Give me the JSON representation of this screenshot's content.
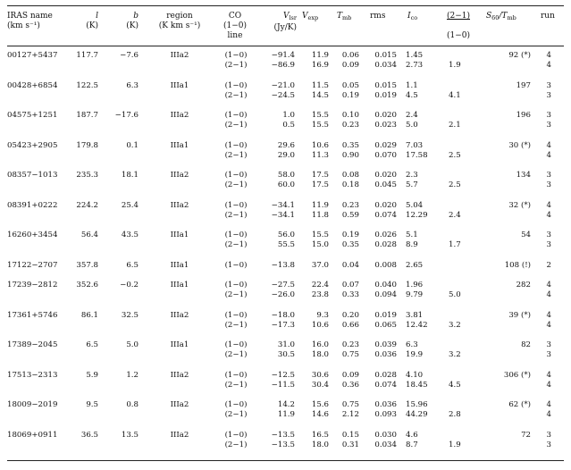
{
  "headers": {
    "name": "IRAS name",
    "name_unit": "(km s⁻¹)",
    "l": "l",
    "l_unit": "(K)",
    "b": "b",
    "b_unit": "(K)",
    "region": "region",
    "region_unit": "(K km s⁻¹)",
    "co": "CO",
    "co_unit": "(1−0)",
    "co_unit2": "line",
    "vlsr": "V",
    "vlsr_sub": "lsr",
    "vlsr_unit": "(Jy/K)",
    "vexp": "V",
    "vexp_sub": "exp",
    "tmb": "T",
    "tmb_sub": "mb",
    "rms": "rms",
    "ico": "I",
    "ico_sub": "co",
    "ratio_top": "(2−1)",
    "ratio_bottom": "(1−0)",
    "s60": "S",
    "s60_sub": "60",
    "s60_tail": "/T",
    "s60_tail_sub": "mb",
    "run": "run"
  },
  "rows": [
    {
      "name": "00127+5437",
      "l": "117.7",
      "b": "−7.6",
      "region": "IIIa2",
      "s60": "92 (*)",
      "lines": [
        {
          "co": "(1−0)",
          "vlsr": "−91.4",
          "vexp": "11.9",
          "tmb": "0.06",
          "rms": "0.015",
          "ico": "1.45",
          "ratio": "",
          "run": "4"
        },
        {
          "co": "(2−1)",
          "vlsr": "−86.9",
          "vexp": "16.9",
          "tmb": "0.09",
          "rms": "0.034",
          "ico": "2.73",
          "ratio": "1.9",
          "run": "4"
        }
      ]
    },
    {
      "name": "00428+6854",
      "l": "122.5",
      "b": "6.3",
      "region": "IIIa1",
      "s60": "197",
      "lines": [
        {
          "co": "(1−0)",
          "vlsr": "−21.0",
          "vexp": "11.5",
          "tmb": "0.05",
          "rms": "0.015",
          "ico": "1.1",
          "ratio": "",
          "run": "3"
        },
        {
          "co": "(2−1)",
          "vlsr": "−24.5",
          "vexp": "14.5",
          "tmb": "0.19",
          "rms": "0.019",
          "ico": "4.5",
          "ratio": "4.1",
          "run": "3"
        }
      ]
    },
    {
      "name": "04575+1251",
      "l": "187.7",
      "b": "−17.6",
      "region": "IIIa2",
      "s60": "196",
      "lines": [
        {
          "co": "(1−0)",
          "vlsr": "1.0",
          "vexp": "15.5",
          "tmb": "0.10",
          "rms": "0.020",
          "ico": "2.4",
          "ratio": "",
          "run": "3"
        },
        {
          "co": "(2−1)",
          "vlsr": "0.5",
          "vexp": "15.5",
          "tmb": "0.23",
          "rms": "0.023",
          "ico": "5.0",
          "ratio": "2.1",
          "run": "3"
        }
      ]
    },
    {
      "name": "05423+2905",
      "l": "179.8",
      "b": "0.1",
      "region": "IIIa1",
      "s60": "30 (*)",
      "lines": [
        {
          "co": "(1−0)",
          "vlsr": "29.6",
          "vexp": "10.6",
          "tmb": "0.35",
          "rms": "0.029",
          "ico": "7.03",
          "ratio": "",
          "run": "4"
        },
        {
          "co": "(2−1)",
          "vlsr": "29.0",
          "vexp": "11.3",
          "tmb": "0.90",
          "rms": "0.070",
          "ico": "17.58",
          "ratio": "2.5",
          "run": "4"
        }
      ]
    },
    {
      "name": "08357−1013",
      "l": "235.3",
      "b": "18.1",
      "region": "IIIa2",
      "s60": "134",
      "lines": [
        {
          "co": "(1−0)",
          "vlsr": "58.0",
          "vexp": "17.5",
          "tmb": "0.08",
          "rms": "0.020",
          "ico": "2.3",
          "ratio": "",
          "run": "3"
        },
        {
          "co": "(2−1)",
          "vlsr": "60.0",
          "vexp": "17.5",
          "tmb": "0.18",
          "rms": "0.045",
          "ico": "5.7",
          "ratio": "2.5",
          "run": "3"
        }
      ]
    },
    {
      "name": "08391+0222",
      "l": "224.2",
      "b": "25.4",
      "region": "IIIa2",
      "s60": "32 (*)",
      "lines": [
        {
          "co": "(1−0)",
          "vlsr": "−34.1",
          "vexp": "11.9",
          "tmb": "0.23",
          "rms": "0.020",
          "ico": "5.04",
          "ratio": "",
          "run": "4"
        },
        {
          "co": "(2−1)",
          "vlsr": "−34.1",
          "vexp": "11.8",
          "tmb": "0.59",
          "rms": "0.074",
          "ico": "12.29",
          "ratio": "2.4",
          "run": "4"
        }
      ]
    },
    {
      "name": "16260+3454",
      "l": "56.4",
      "b": "43.5",
      "region": "IIIa1",
      "s60": "54",
      "lines": [
        {
          "co": "(1−0)",
          "vlsr": "56.0",
          "vexp": "15.5",
          "tmb": "0.19",
          "rms": "0.026",
          "ico": "5.1",
          "ratio": "",
          "run": "3"
        },
        {
          "co": "(2−1)",
          "vlsr": "55.5",
          "vexp": "15.0",
          "tmb": "0.35",
          "rms": "0.028",
          "ico": "8.9",
          "ratio": "1.7",
          "run": "3"
        }
      ]
    },
    {
      "name": "17122−2707",
      "l": "357.8",
      "b": "6.5",
      "region": "IIIa1",
      "s60": "108 (!)",
      "lines": [
        {
          "co": "(1−0)",
          "vlsr": "−13.8",
          "vexp": "37.0",
          "tmb": "0.04",
          "rms": "0.008",
          "ico": "2.65",
          "ratio": "",
          "run": "2"
        }
      ]
    },
    {
      "name": "17239−2812",
      "l": "352.6",
      "b": "−0.2",
      "region": "IIIa1",
      "s60": "282",
      "lines": [
        {
          "co": "(1−0)",
          "vlsr": "−27.5",
          "vexp": "22.4",
          "tmb": "0.07",
          "rms": "0.040",
          "ico": "1.96",
          "ratio": "",
          "run": "4"
        },
        {
          "co": "(2−1)",
          "vlsr": "−26.0",
          "vexp": "23.8",
          "tmb": "0.33",
          "rms": "0.094",
          "ico": "9.79",
          "ratio": "5.0",
          "run": "4"
        }
      ]
    },
    {
      "name": "17361+5746",
      "l": "86.1",
      "b": "32.5",
      "region": "IIIa2",
      "s60": "39 (*)",
      "lines": [
        {
          "co": "(1−0)",
          "vlsr": "−18.0",
          "vexp": "9.3",
          "tmb": "0.20",
          "rms": "0.019",
          "ico": "3.81",
          "ratio": "",
          "run": "4"
        },
        {
          "co": "(2−1)",
          "vlsr": "−17.3",
          "vexp": "10.6",
          "tmb": "0.66",
          "rms": "0.065",
          "ico": "12.42",
          "ratio": "3.2",
          "run": "4"
        }
      ]
    },
    {
      "name": "17389−2045",
      "l": "6.5",
      "b": "5.0",
      "region": "IIIa1",
      "s60": "82",
      "lines": [
        {
          "co": "(1−0)",
          "vlsr": "31.0",
          "vexp": "16.0",
          "tmb": "0.23",
          "rms": "0.039",
          "ico": "6.3",
          "ratio": "",
          "run": "3"
        },
        {
          "co": "(2−1)",
          "vlsr": "30.5",
          "vexp": "18.0",
          "tmb": "0.75",
          "rms": "0.036",
          "ico": "19.9",
          "ratio": "3.2",
          "run": "3"
        }
      ]
    },
    {
      "name": "17513−2313",
      "l": "5.9",
      "b": "1.2",
      "region": "IIIa2",
      "s60": "306 (*)",
      "lines": [
        {
          "co": "(1−0)",
          "vlsr": "−12.5",
          "vexp": "30.6",
          "tmb": "0.09",
          "rms": "0.028",
          "ico": "4.10",
          "ratio": "",
          "run": "4"
        },
        {
          "co": "(2−1)",
          "vlsr": "−11.5",
          "vexp": "30.4",
          "tmb": "0.36",
          "rms": "0.074",
          "ico": "18.45",
          "ratio": "4.5",
          "run": "4"
        }
      ]
    },
    {
      "name": "18009−2019",
      "l": "9.5",
      "b": "0.8",
      "region": "IIIa2",
      "s60": "62 (*)",
      "lines": [
        {
          "co": "(1−0)",
          "vlsr": "14.2",
          "vexp": "15.6",
          "tmb": "0.75",
          "rms": "0.036",
          "ico": "15.96",
          "ratio": "",
          "run": "4"
        },
        {
          "co": "(2−1)",
          "vlsr": "11.9",
          "vexp": "14.6",
          "tmb": "2.12",
          "rms": "0.093",
          "ico": "44.29",
          "ratio": "2.8",
          "run": "4"
        }
      ]
    },
    {
      "name": "18069+0911",
      "l": "36.5",
      "b": "13.5",
      "region": "IIIa2",
      "s60": "72",
      "lines": [
        {
          "co": "(1−0)",
          "vlsr": "−13.5",
          "vexp": "16.5",
          "tmb": "0.15",
          "rms": "0.030",
          "ico": "4.6",
          "ratio": "",
          "run": "3"
        },
        {
          "co": "(2−1)",
          "vlsr": "−13.5",
          "vexp": "18.0",
          "tmb": "0.31",
          "rms": "0.034",
          "ico": "8.7",
          "ratio": "1.9",
          "run": "3"
        }
      ]
    }
  ]
}
